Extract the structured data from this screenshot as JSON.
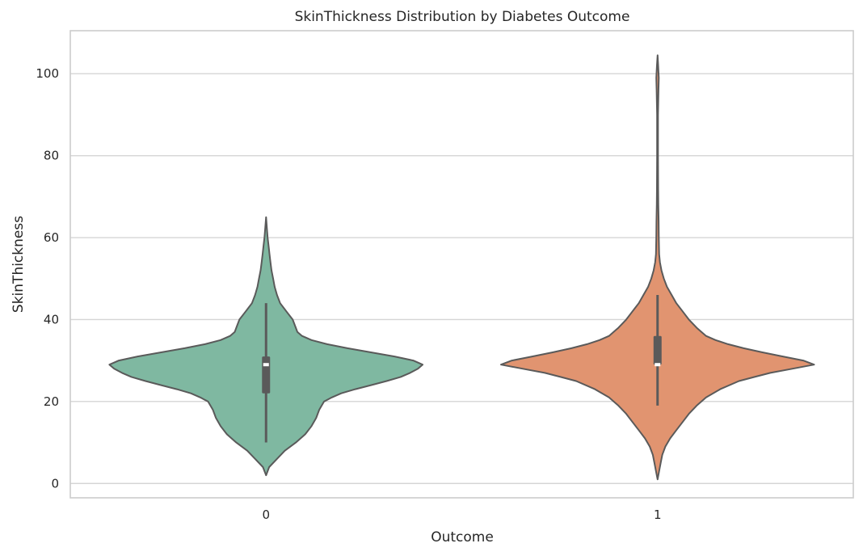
{
  "chart_data": {
    "type": "violin",
    "title": "SkinThickness Distribution by Diabetes Outcome",
    "xlabel": "Outcome",
    "ylabel": "SkinThickness",
    "ylim": [
      -3.5,
      110.5
    ],
    "yticks": [
      0,
      20,
      40,
      60,
      80,
      100
    ],
    "categories": [
      "0",
      "1"
    ],
    "grid": "y",
    "legend": "none",
    "series": [
      {
        "category": "0",
        "color": "#7fb8a1",
        "box": {
          "whisker_low": 10,
          "q1": 22,
          "median": 29,
          "q3": 31,
          "whisker_high": 44
        },
        "density_profile": [
          [
            2,
            0.0
          ],
          [
            4,
            0.02
          ],
          [
            6,
            0.07
          ],
          [
            8,
            0.12
          ],
          [
            10,
            0.19
          ],
          [
            12,
            0.25
          ],
          [
            14,
            0.29
          ],
          [
            16,
            0.32
          ],
          [
            18,
            0.34
          ],
          [
            20,
            0.37
          ],
          [
            21,
            0.42
          ],
          [
            22,
            0.48
          ],
          [
            23,
            0.57
          ],
          [
            24,
            0.67
          ],
          [
            25,
            0.77
          ],
          [
            26,
            0.86
          ],
          [
            27,
            0.92
          ],
          [
            28,
            0.97
          ],
          [
            29,
            1.0
          ],
          [
            30,
            0.94
          ],
          [
            31,
            0.82
          ],
          [
            32,
            0.67
          ],
          [
            33,
            0.52
          ],
          [
            34,
            0.39
          ],
          [
            35,
            0.29
          ],
          [
            36,
            0.23
          ],
          [
            37,
            0.2
          ],
          [
            38,
            0.19
          ],
          [
            40,
            0.17
          ],
          [
            42,
            0.13
          ],
          [
            44,
            0.09
          ],
          [
            46,
            0.07
          ],
          [
            48,
            0.055
          ],
          [
            50,
            0.045
          ],
          [
            52,
            0.035
          ],
          [
            54,
            0.028
          ],
          [
            56,
            0.022
          ],
          [
            58,
            0.016
          ],
          [
            60,
            0.01
          ],
          [
            62,
            0.006
          ],
          [
            65,
            0.0
          ]
        ]
      },
      {
        "category": "1",
        "color": "#e19470",
        "box": {
          "whisker_low": 19,
          "q1": 29,
          "median": 29,
          "q3": 36,
          "whisker_high": 46
        },
        "density_profile": [
          [
            1,
            0.0
          ],
          [
            3,
            0.01
          ],
          [
            5,
            0.02
          ],
          [
            7,
            0.03
          ],
          [
            9,
            0.05
          ],
          [
            11,
            0.08
          ],
          [
            13,
            0.12
          ],
          [
            15,
            0.16
          ],
          [
            17,
            0.2
          ],
          [
            19,
            0.25
          ],
          [
            21,
            0.31
          ],
          [
            23,
            0.4
          ],
          [
            25,
            0.52
          ],
          [
            26,
            0.62
          ],
          [
            27,
            0.72
          ],
          [
            28,
            0.86
          ],
          [
            29,
            1.0
          ],
          [
            30,
            0.93
          ],
          [
            31,
            0.8
          ],
          [
            32,
            0.67
          ],
          [
            33,
            0.55
          ],
          [
            34,
            0.45
          ],
          [
            35,
            0.37
          ],
          [
            36,
            0.31
          ],
          [
            38,
            0.25
          ],
          [
            40,
            0.2
          ],
          [
            42,
            0.16
          ],
          [
            44,
            0.12
          ],
          [
            46,
            0.09
          ],
          [
            48,
            0.06
          ],
          [
            50,
            0.04
          ],
          [
            52,
            0.025
          ],
          [
            54,
            0.015
          ],
          [
            56,
            0.01
          ],
          [
            60,
            0.008
          ],
          [
            64,
            0.007
          ],
          [
            68,
            0.005
          ],
          [
            72,
            0.004
          ],
          [
            80,
            0.003
          ],
          [
            90,
            0.003
          ],
          [
            96,
            0.006
          ],
          [
            99,
            0.008
          ],
          [
            102,
            0.004
          ],
          [
            104.5,
            0.0
          ]
        ]
      }
    ]
  }
}
